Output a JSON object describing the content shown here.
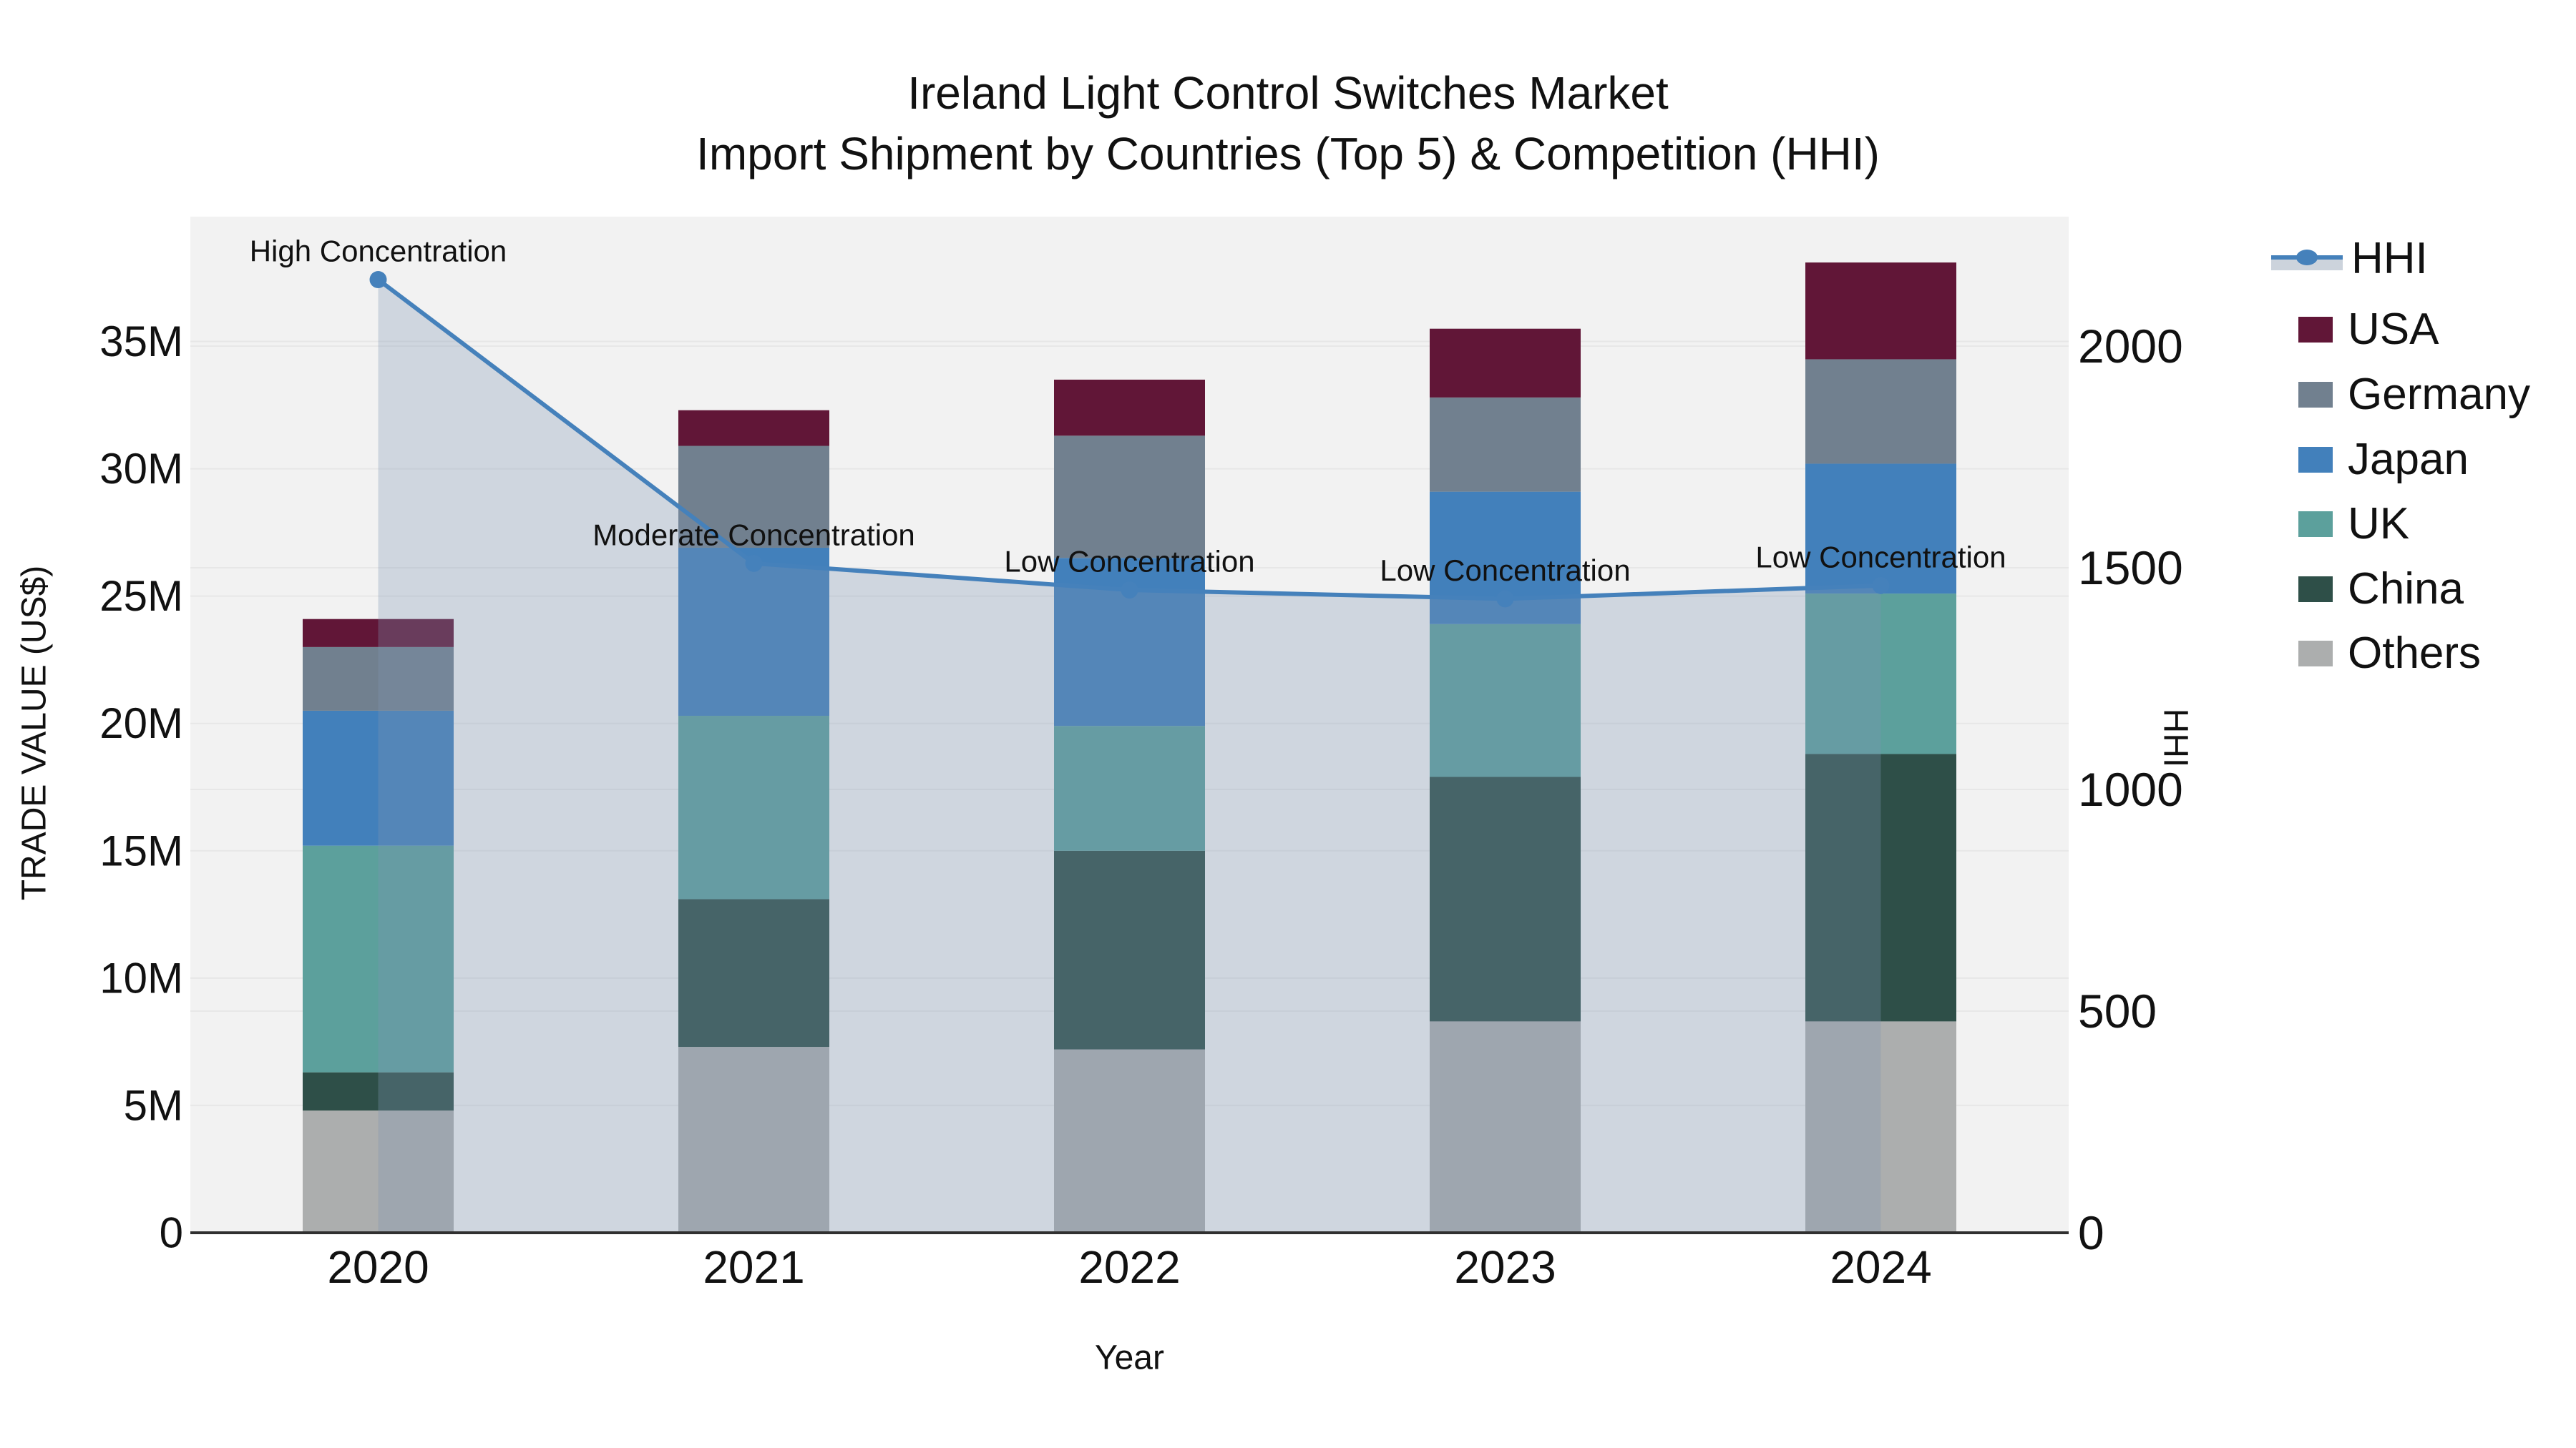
{
  "title": {
    "line1": "Ireland Light Control Switches Market",
    "line2": "Import Shipment by Countries (Top 5) & Competition (HHI)"
  },
  "axes": {
    "x": {
      "label": "Year",
      "categories": [
        "2020",
        "2021",
        "2022",
        "2023",
        "2024"
      ]
    },
    "y_left": {
      "label": "TRADE VALUE (US$)",
      "tick_labels": [
        "0",
        "5M",
        "10M",
        "15M",
        "20M",
        "25M",
        "30M",
        "35M"
      ],
      "tick_values": [
        0,
        5,
        10,
        15,
        20,
        25,
        30,
        35
      ],
      "max": 39.9,
      "unit": "US$ millions"
    },
    "y_right": {
      "label": "HHI",
      "tick_labels": [
        "0",
        "500",
        "1000",
        "1500",
        "2000"
      ],
      "tick_values": [
        0,
        500,
        1000,
        1500,
        2000
      ],
      "max": 2292
    }
  },
  "chart_data": {
    "type": "stacked-bar+line",
    "categories": [
      "2020",
      "2021",
      "2022",
      "2023",
      "2024"
    ],
    "unit": "US$ millions",
    "series": [
      {
        "name": "Others",
        "color": "#ACAEAE",
        "values": [
          4.8,
          7.3,
          7.2,
          8.3,
          8.3
        ]
      },
      {
        "name": "China",
        "color": "#2E4F48",
        "values": [
          1.5,
          5.8,
          7.8,
          9.6,
          10.5
        ]
      },
      {
        "name": "UK",
        "color": "#5CA09C",
        "values": [
          8.9,
          7.2,
          4.9,
          6.0,
          6.3
        ]
      },
      {
        "name": "Japan",
        "color": "#4280BB",
        "values": [
          5.3,
          6.6,
          6.6,
          5.2,
          5.1
        ]
      },
      {
        "name": "Germany",
        "color": "#71808F",
        "values": [
          2.5,
          4.0,
          4.8,
          3.7,
          4.1
        ]
      },
      {
        "name": "USA",
        "color": "#611637",
        "values": [
          1.1,
          1.4,
          2.2,
          2.7,
          3.8
        ]
      }
    ],
    "line": {
      "name": "HHI",
      "color": "#4581BB",
      "area_color": "rgba(127,150,180,0.30)",
      "values": [
        2150,
        1510,
        1450,
        1430,
        1460
      ]
    },
    "annotations": [
      {
        "category": "2020",
        "label": "High Concentration"
      },
      {
        "category": "2021",
        "label": "Moderate Concentration"
      },
      {
        "category": "2022",
        "label": "Low Concentration"
      },
      {
        "category": "2023",
        "label": "Low Concentration"
      },
      {
        "category": "2024",
        "label": "Low Concentration"
      }
    ]
  },
  "legend": {
    "items": [
      {
        "label": "HHI",
        "type": "line",
        "color": "#4581BB",
        "band_color": "#CCD3DC"
      },
      {
        "label": "USA",
        "type": "swatch",
        "color": "#611637"
      },
      {
        "label": "Germany",
        "type": "swatch",
        "color": "#71808F"
      },
      {
        "label": "Japan",
        "type": "swatch",
        "color": "#4280BB"
      },
      {
        "label": "UK",
        "type": "swatch",
        "color": "#5CA09C"
      },
      {
        "label": "China",
        "type": "swatch",
        "color": "#2E4F48"
      },
      {
        "label": "Others",
        "type": "swatch",
        "color": "#ACAEAE"
      }
    ]
  },
  "colors": {
    "figure_bg": "#FFFFFF",
    "plot_bg": "#F2F2F2",
    "grid": "#E7E7E7",
    "axis_line": "#303030",
    "text": "#111111"
  }
}
